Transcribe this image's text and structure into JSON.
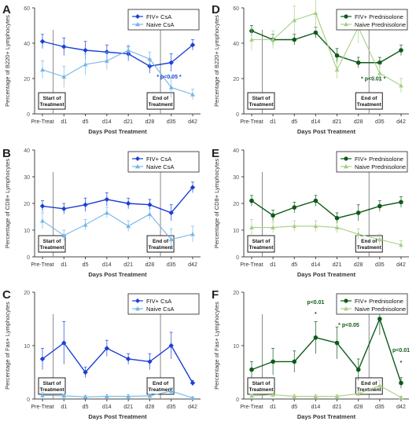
{
  "colors": {
    "fiv_csa": "#1a3fd6",
    "naive_csa": "#74b6e6",
    "fiv_pred": "#0e5a19",
    "naive_pred": "#a6cf86",
    "axis": "#444444",
    "marker_line": "#888888"
  },
  "chart_data": [
    {
      "panel": "A",
      "type": "line",
      "categories": [
        "Pre-Treat",
        "d1",
        "d5",
        "d14",
        "d21",
        "d28",
        "d35",
        "d42"
      ],
      "xlabel": "Days Post Treatment",
      "ylabel": "Percentage of B220+ Lymphocytes",
      "ylim": [
        0,
        60
      ],
      "yticks": [
        "0",
        "20",
        "40",
        "60"
      ],
      "legend": "top-right",
      "series": [
        {
          "name": "FIV+ CsA",
          "values": [
            41,
            38,
            36,
            35,
            34,
            27,
            29,
            39
          ],
          "err": [
            4,
            5,
            5,
            4,
            4,
            4,
            5,
            3
          ]
        },
        {
          "name": "Naive CsA",
          "values": [
            25,
            21,
            28,
            30,
            36,
            31,
            15,
            11
          ],
          "err": [
            5,
            6,
            6,
            5,
            3,
            4,
            6,
            3
          ]
        }
      ],
      "annotations": [
        {
          "text": "* p<0.05 *",
          "x": 5.9,
          "y": 20
        }
      ],
      "start_label": [
        "Start of",
        "Treatment"
      ],
      "end_label": [
        "End of",
        "Treatment"
      ]
    },
    {
      "panel": "B",
      "type": "line",
      "categories": [
        "Pre-Treat",
        "d1",
        "d5",
        "d14",
        "d21",
        "d28",
        "d35",
        "d42"
      ],
      "xlabel": "Days Post Treatment",
      "ylabel": "Percentage of CD8+ Lymphocytes",
      "ylim": [
        0,
        40
      ],
      "yticks": [
        "0",
        "10",
        "20",
        "30",
        "40"
      ],
      "legend": "top-right",
      "series": [
        {
          "name": "FIV+ CsA",
          "values": [
            19,
            18,
            19.5,
            21.5,
            20,
            19.5,
            16.5,
            26
          ],
          "err": [
            2,
            2,
            2.5,
            2.5,
            2,
            2,
            3,
            2
          ]
        },
        {
          "name": "Naive CsA",
          "values": [
            13.5,
            8,
            12,
            16.5,
            11.5,
            16,
            6.5,
            8.5
          ],
          "err": [
            3,
            2,
            2,
            2,
            2,
            2,
            4,
            3
          ]
        }
      ],
      "annotations": [],
      "start_label": [
        "Start of",
        "Treatment"
      ],
      "end_label": [
        "End of",
        "Treatment"
      ]
    },
    {
      "panel": "C",
      "type": "line",
      "categories": [
        "Pre-Treat",
        "d1",
        "d5",
        "d14",
        "d21",
        "d28",
        "d35",
        "d42"
      ],
      "xlabel": "Days Post Treatment",
      "ylabel": "Percentage of Fas+ Lymphocytes",
      "ylim": [
        0,
        20
      ],
      "yticks": [
        "0",
        "10",
        "20"
      ],
      "legend": "top-right",
      "series": [
        {
          "name": "FIV+ CsA",
          "values": [
            7.5,
            10.5,
            5,
            9.5,
            7.5,
            7,
            10,
            3
          ],
          "err": [
            2,
            4,
            1,
            1.5,
            1,
            1.5,
            2.5,
            0.5
          ]
        },
        {
          "name": "Naive CsA",
          "values": [
            0.7,
            0.6,
            0.4,
            0.5,
            0.5,
            0.6,
            1.5,
            0.2
          ],
          "err": [
            0.5,
            0.3,
            0.3,
            0.3,
            0.3,
            0.3,
            0.6,
            0.2
          ]
        }
      ],
      "annotations": [],
      "start_label": [
        "Start of",
        "Treatment"
      ],
      "end_label": [
        "End of",
        "Treatment"
      ]
    },
    {
      "panel": "D",
      "type": "line",
      "categories": [
        "Pre-Treat",
        "d1",
        "d5",
        "d14",
        "d21",
        "d28",
        "d35",
        "d42"
      ],
      "xlabel": "Days Post Treatment",
      "ylabel": "Percentage of B220+ Lymphocytes",
      "ylim": [
        0,
        60
      ],
      "yticks": [
        "0",
        "20",
        "40",
        "60"
      ],
      "legend": "top-right",
      "series": [
        {
          "name": "FIV+ Prednisolone",
          "values": [
            47,
            42,
            42,
            46,
            33,
            29,
            29,
            36
          ],
          "err": [
            3,
            3,
            3,
            3,
            4,
            3,
            3,
            3
          ]
        },
        {
          "name": "Naive Prednisolone",
          "values": [
            42,
            42,
            53,
            57,
            25,
            49,
            23,
            16
          ],
          "err": [
            6,
            5,
            8,
            10,
            5,
            9,
            5,
            4
          ]
        }
      ],
      "annotations": [
        {
          "text": "* p<0.01 *",
          "x": 5.7,
          "y": 19
        }
      ],
      "start_label": [
        "Start of",
        "Treatment"
      ],
      "end_label": [
        "End of",
        "Treatment"
      ]
    },
    {
      "panel": "E",
      "type": "line",
      "categories": [
        "Pre-Treat",
        "d1",
        "d5",
        "d14",
        "d21",
        "d28",
        "d35",
        "d42"
      ],
      "xlabel": "Days Post Treatment",
      "ylabel": "Percentage of CD8+ Lymphocytes",
      "ylim": [
        0,
        40
      ],
      "yticks": [
        "0",
        "10",
        "20",
        "30",
        "40"
      ],
      "legend": "top-right",
      "series": [
        {
          "name": "FIV+ Prednisolone",
          "values": [
            21,
            15.5,
            18.5,
            21,
            14.5,
            16.5,
            19,
            20.5
          ],
          "err": [
            2,
            2,
            2,
            2,
            2,
            3,
            2,
            2
          ]
        },
        {
          "name": "Naive Prednisolone",
          "values": [
            11,
            11,
            11.5,
            11.5,
            11,
            8.5,
            6.5,
            4.5
          ],
          "err": [
            3,
            2,
            2,
            2,
            2,
            2,
            2,
            1.5
          ]
        }
      ],
      "annotations": [],
      "start_label": [
        "Start of",
        "Treatment"
      ],
      "end_label": [
        "End of",
        "Treatment"
      ]
    },
    {
      "panel": "F",
      "type": "line",
      "categories": [
        "Pre-Treat",
        "d1",
        "d5",
        "d14",
        "d21",
        "d28",
        "d35",
        "d42"
      ],
      "xlabel": "Days Post Treatment",
      "ylabel": "Percentage of Fas+ Lymphocytes",
      "ylim": [
        0,
        20
      ],
      "yticks": [
        "0",
        "10",
        "20"
      ],
      "legend": "top-right",
      "series": [
        {
          "name": "FIV+ Prednisolone",
          "values": [
            5.5,
            7,
            7,
            11.5,
            10.5,
            5.5,
            15,
            3
          ],
          "err": [
            1.5,
            2.5,
            2,
            3,
            3,
            2,
            3,
            1
          ]
        },
        {
          "name": "Naive Prednisolone",
          "values": [
            0.6,
            0.8,
            0.5,
            0.5,
            0.5,
            1,
            2.5,
            0.3
          ],
          "err": [
            0.3,
            0.3,
            0.3,
            0.3,
            0.3,
            0.5,
            1,
            0.2
          ]
        }
      ],
      "annotations": [
        {
          "text": "p<0.01",
          "x": 3,
          "y": 17.8
        },
        {
          "text": "*",
          "x": 3,
          "y": 15.6
        },
        {
          "text": "* p<0.05",
          "x": 4.55,
          "y": 13.5
        },
        {
          "text": "p<0.01",
          "x": 7,
          "y": 8.8
        },
        {
          "text": "*",
          "x": 7,
          "y": 6.5
        }
      ],
      "start_label": [
        "Start of",
        "Treatment"
      ],
      "end_label": [
        "End of",
        "Treatment"
      ]
    }
  ]
}
